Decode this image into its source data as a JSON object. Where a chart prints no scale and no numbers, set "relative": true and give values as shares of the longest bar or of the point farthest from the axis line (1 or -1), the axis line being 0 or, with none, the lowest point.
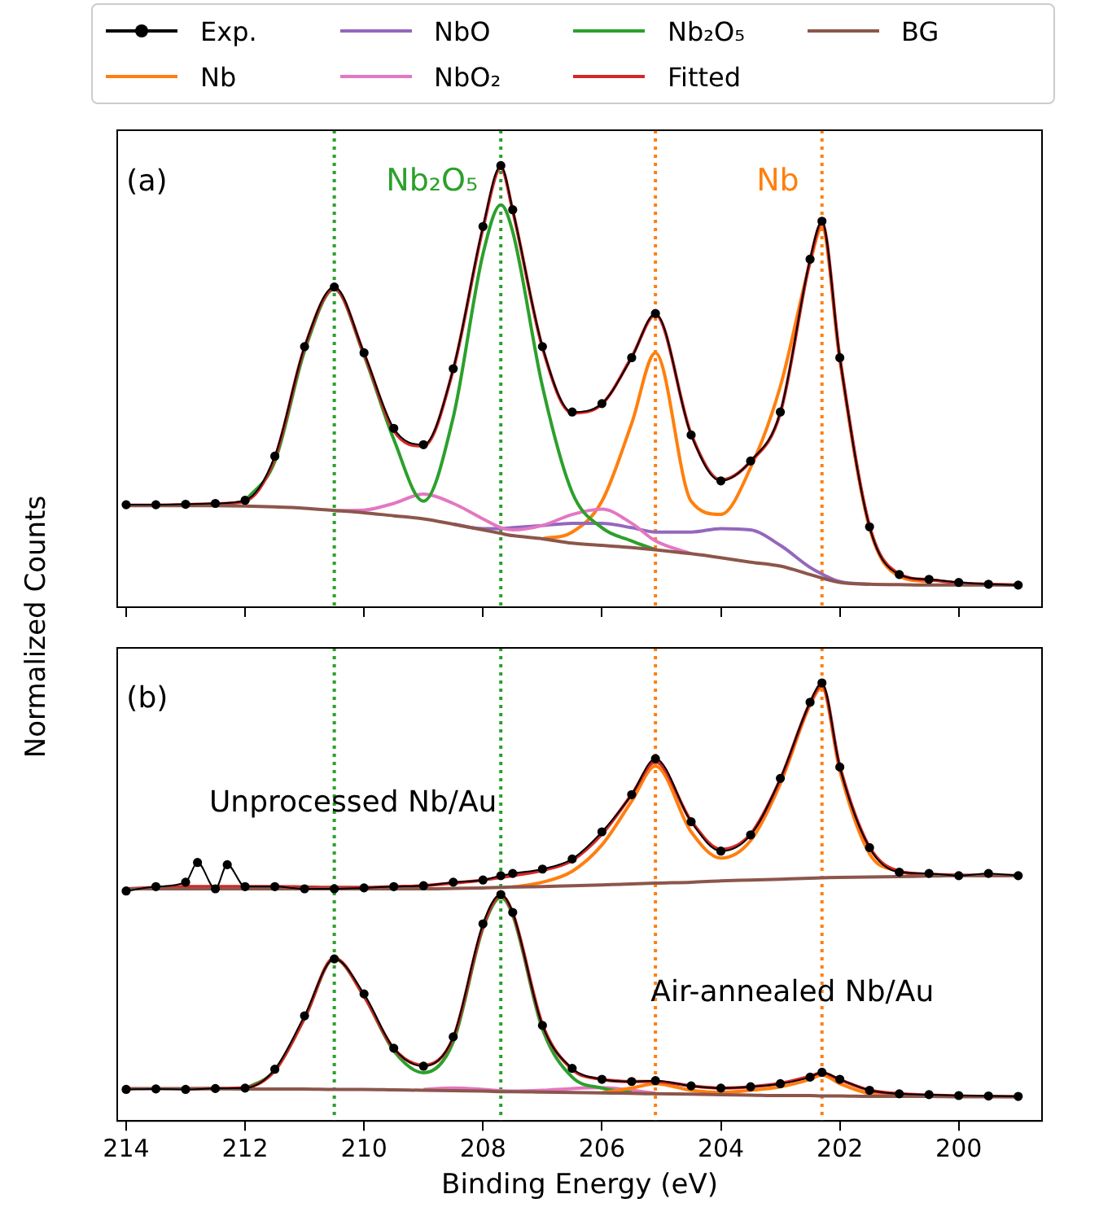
{
  "chart_data": [
    {
      "type": "line",
      "relative": true,
      "ylabel": "Normalized Counts",
      "legend": "top",
      "tick_labels": false,
      "xlim": [
        214.15,
        198.6
      ],
      "xticks": [
        214,
        212,
        210,
        208,
        206,
        204,
        202,
        200
      ],
      "annotations": [
        "(a)"
      ],
      "ref_lines": [
        {
          "axis": "x",
          "value": 210.5,
          "color": "#2ca02c",
          "line_style": "dotted"
        },
        {
          "axis": "x",
          "value": 207.7,
          "label": "Nb₂O₅",
          "color": "#2ca02c",
          "line_style": "dotted"
        },
        {
          "axis": "x",
          "value": 205.1,
          "color": "#ff7f0e",
          "line_style": "dotted"
        },
        {
          "axis": "x",
          "value": 202.3,
          "label": "Nb",
          "color": "#ff7f0e",
          "line_style": "dotted"
        }
      ],
      "x": [
        214,
        213.5,
        213,
        212.5,
        212,
        211.5,
        211,
        210.5,
        210,
        209.5,
        209,
        208.5,
        208,
        207.7,
        207.5,
        207,
        206.5,
        206,
        205.5,
        205.1,
        204.5,
        204,
        203.5,
        203,
        202.5,
        202.3,
        202,
        201.5,
        201,
        200.5,
        200,
        199.5,
        199
      ],
      "series": [
        {
          "name": "Exp.",
          "color": "#000000",
          "marker": "circle",
          "values": [
            0.232,
            0.232,
            0.233,
            0.235,
            0.242,
            0.342,
            0.59,
            0.725,
            0.576,
            0.405,
            0.368,
            0.54,
            0.862,
            1.0,
            0.9,
            0.59,
            0.442,
            0.461,
            0.565,
            0.665,
            0.39,
            0.286,
            0.331,
            0.442,
            0.788,
            0.874,
            0.565,
            0.182,
            0.074,
            0.063,
            0.056,
            0.052,
            0.05
          ]
        },
        {
          "name": "Nb",
          "color": "#ff7f0e",
          "values": [
            null,
            null,
            null,
            null,
            null,
            null,
            null,
            null,
            null,
            null,
            null,
            null,
            null,
            null,
            null,
            0.155,
            0.17,
            0.24,
            0.416,
            0.576,
            0.24,
            0.21,
            0.316,
            0.5,
            0.78,
            0.86,
            0.56,
            0.18,
            0.07,
            0.058,
            null,
            null,
            null
          ]
        },
        {
          "name": "NbO",
          "color": "#9467bd",
          "values": [
            null,
            null,
            null,
            null,
            null,
            null,
            null,
            null,
            null,
            null,
            null,
            0.188,
            0.178,
            0.178,
            0.18,
            0.185,
            0.19,
            0.19,
            0.18,
            0.17,
            0.17,
            0.178,
            0.175,
            0.14,
            0.09,
            0.075,
            0.058,
            0.052,
            null,
            null,
            null,
            null,
            null
          ]
        },
        {
          "name": "NbO₂",
          "color": "#e377c2",
          "values": [
            null,
            null,
            null,
            null,
            null,
            null,
            null,
            0.219,
            0.22,
            0.235,
            0.256,
            0.235,
            0.2,
            0.18,
            0.175,
            0.185,
            0.21,
            0.222,
            0.19,
            0.15,
            0.121,
            null,
            null,
            null,
            null,
            null,
            null,
            null,
            null,
            null,
            null,
            null,
            null
          ]
        },
        {
          "name": "Nb₂O₅",
          "color": "#2ca02c",
          "values": [
            null,
            null,
            null,
            null,
            0.24,
            0.33,
            0.58,
            0.72,
            0.57,
            0.38,
            0.24,
            0.43,
            0.8,
            0.911,
            0.85,
            0.5,
            0.26,
            0.18,
            0.15,
            0.13,
            null,
            null,
            null,
            null,
            null,
            null,
            null,
            null,
            null,
            null,
            null,
            null,
            null
          ]
        },
        {
          "name": "Fitted",
          "color": "#d62728",
          "values": [
            0.231,
            0.231,
            0.232,
            0.234,
            0.24,
            0.338,
            0.588,
            0.722,
            0.574,
            0.4,
            0.365,
            0.538,
            0.858,
            0.995,
            0.898,
            0.588,
            0.44,
            0.46,
            0.566,
            0.662,
            0.392,
            0.288,
            0.33,
            0.44,
            0.785,
            0.87,
            0.566,
            0.184,
            0.075,
            0.062,
            0.055,
            0.052,
            0.05
          ]
        },
        {
          "name": "BG",
          "color": "#8c564b",
          "values": [
            0.23,
            0.23,
            0.23,
            0.23,
            0.229,
            0.227,
            0.224,
            0.219,
            0.214,
            0.207,
            0.2,
            0.188,
            0.175,
            0.167,
            0.162,
            0.155,
            0.145,
            0.14,
            0.135,
            0.13,
            0.121,
            0.112,
            0.102,
            0.093,
            0.074,
            0.066,
            0.056,
            0.052,
            0.051,
            0.05,
            0.05,
            0.05,
            0.05
          ]
        }
      ]
    },
    {
      "type": "line",
      "relative": true,
      "xlabel": "Binding Energy (eV)",
      "tick_labels": "x",
      "xlim": [
        214.15,
        198.6
      ],
      "xticks": [
        214,
        212,
        210,
        208,
        206,
        204,
        202,
        200
      ],
      "annotations": [
        "(b)",
        "Unprocessed Nb/Au",
        "Air-annealed Nb/Au"
      ],
      "ref_lines": [
        {
          "axis": "x",
          "value": 210.5,
          "color": "#2ca02c",
          "line_style": "dotted"
        },
        {
          "axis": "x",
          "value": 207.7,
          "color": "#2ca02c",
          "line_style": "dotted"
        },
        {
          "axis": "x",
          "value": 205.1,
          "color": "#ff7f0e",
          "line_style": "dotted"
        },
        {
          "axis": "x",
          "value": 202.3,
          "color": "#ff7f0e",
          "line_style": "dotted"
        }
      ],
      "x": [
        214,
        213.5,
        213,
        212.5,
        212,
        211.5,
        211,
        210.5,
        210,
        209.5,
        209,
        208.5,
        208,
        207.7,
        207.5,
        207,
        206.5,
        206,
        205.5,
        205.1,
        204.5,
        204,
        203.5,
        203,
        202.5,
        202.3,
        202,
        201.5,
        201,
        200.5,
        200,
        199.5,
        199
      ],
      "series": [
        {
          "color": "#000000",
          "marker": "circle",
          "x": [
            214,
            213.5,
            213,
            212.8,
            212.5,
            212.3,
            212,
            211.5,
            211,
            210.5,
            210,
            209.5,
            209,
            208.5,
            208,
            207.7,
            207.5,
            207,
            206.5,
            206,
            205.5,
            205.1,
            204.5,
            204,
            203.5,
            203,
            202.5,
            202.3,
            202,
            201.5,
            201,
            200.5,
            200,
            199.5,
            199
          ],
          "values": [
            0.525,
            0.535,
            0.545,
            0.59,
            0.53,
            0.585,
            0.535,
            0.535,
            0.53,
            0.53,
            0.532,
            0.535,
            0.537,
            0.545,
            0.55,
            0.56,
            0.565,
            0.575,
            0.598,
            0.66,
            0.745,
            0.827,
            0.683,
            0.616,
            0.653,
            0.782,
            0.956,
            1.0,
            0.808,
            0.624,
            0.568,
            0.565,
            0.56,
            0.565,
            0.56
          ]
        },
        {
          "color": "#ff7f0e",
          "values": [
            null,
            null,
            null,
            null,
            null,
            null,
            null,
            null,
            null,
            null,
            null,
            null,
            null,
            null,
            0.534,
            0.545,
            0.57,
            0.63,
            0.73,
            0.81,
            0.66,
            0.6,
            0.64,
            0.77,
            0.95,
            0.99,
            0.8,
            0.61,
            0.57,
            0.56,
            null,
            null,
            null
          ]
        },
        {
          "color": "#d62728",
          "values": [
            0.53,
            0.533,
            0.535,
            0.535,
            0.535,
            0.535,
            0.534,
            0.533,
            0.533,
            0.535,
            0.537,
            0.543,
            0.55,
            0.556,
            0.56,
            0.572,
            0.595,
            0.655,
            0.745,
            0.82,
            0.685,
            0.62,
            0.655,
            0.78,
            0.955,
            0.995,
            0.81,
            0.625,
            0.57,
            0.563,
            0.561,
            0.56,
            0.56
          ]
        },
        {
          "color": "#8c564b",
          "values": [
            0.53,
            0.53,
            0.53,
            0.53,
            0.53,
            0.53,
            0.53,
            0.53,
            0.53,
            0.53,
            0.53,
            0.531,
            0.532,
            0.533,
            0.534,
            0.535,
            0.537,
            0.539,
            0.541,
            0.543,
            0.545,
            0.548,
            0.55,
            0.552,
            0.554,
            0.555,
            0.556,
            0.557,
            0.558,
            0.559,
            0.56,
            0.56,
            0.56
          ]
        },
        {
          "color": "#000000",
          "marker": "circle",
          "values": [
            0.072,
            0.073,
            0.072,
            0.074,
            0.075,
            0.118,
            0.24,
            0.37,
            0.29,
            0.166,
            0.125,
            0.192,
            0.45,
            0.517,
            0.476,
            0.218,
            0.12,
            0.095,
            0.09,
            0.092,
            0.08,
            0.075,
            0.078,
            0.085,
            0.1,
            0.111,
            0.095,
            0.07,
            0.062,
            0.06,
            0.058,
            0.057,
            0.056
          ]
        },
        {
          "color": "#e377c2",
          "values": [
            null,
            null,
            null,
            null,
            null,
            null,
            null,
            null,
            null,
            null,
            0.072,
            0.075,
            0.072,
            0.069,
            0.068,
            0.07,
            0.074,
            0.076,
            0.07,
            0.063,
            null,
            null,
            null,
            null,
            null,
            null,
            null,
            null,
            null,
            null,
            null,
            null,
            null
          ]
        },
        {
          "color": "#2ca02c",
          "values": [
            null,
            null,
            null,
            null,
            0.073,
            0.115,
            0.235,
            0.37,
            0.285,
            0.16,
            0.11,
            0.18,
            0.44,
            0.51,
            0.47,
            0.21,
            0.1,
            0.075,
            0.065,
            null,
            null,
            null,
            null,
            null,
            null,
            null,
            null,
            null,
            null,
            null,
            null,
            null,
            null
          ]
        },
        {
          "color": "#ff7f0e",
          "values": [
            null,
            null,
            null,
            null,
            null,
            null,
            null,
            null,
            null,
            null,
            null,
            null,
            null,
            null,
            null,
            null,
            null,
            0.064,
            0.075,
            0.085,
            0.07,
            0.065,
            0.07,
            0.078,
            0.095,
            0.105,
            0.085,
            0.062,
            0.056,
            null,
            null,
            null,
            null
          ]
        },
        {
          "color": "#d62728",
          "values": [
            null,
            null,
            0.073,
            0.074,
            0.076,
            0.115,
            0.235,
            0.372,
            0.285,
            0.165,
            0.127,
            0.19,
            0.445,
            0.515,
            0.475,
            0.22,
            0.118,
            0.095,
            0.09,
            0.09,
            0.08,
            0.075,
            0.078,
            0.086,
            0.102,
            0.11,
            0.094,
            0.07,
            0.062,
            0.059,
            0.057,
            0.056,
            0.055
          ]
        },
        {
          "color": "#8c564b",
          "values": [
            0.074,
            0.074,
            0.074,
            0.074,
            0.073,
            0.073,
            0.073,
            0.072,
            0.072,
            0.071,
            0.07,
            0.069,
            0.068,
            0.067,
            0.067,
            0.066,
            0.065,
            0.064,
            0.063,
            0.062,
            0.061,
            0.06,
            0.059,
            0.058,
            0.058,
            0.057,
            0.057,
            0.056,
            0.056,
            0.056,
            0.055,
            0.055,
            0.055
          ]
        }
      ]
    }
  ]
}
